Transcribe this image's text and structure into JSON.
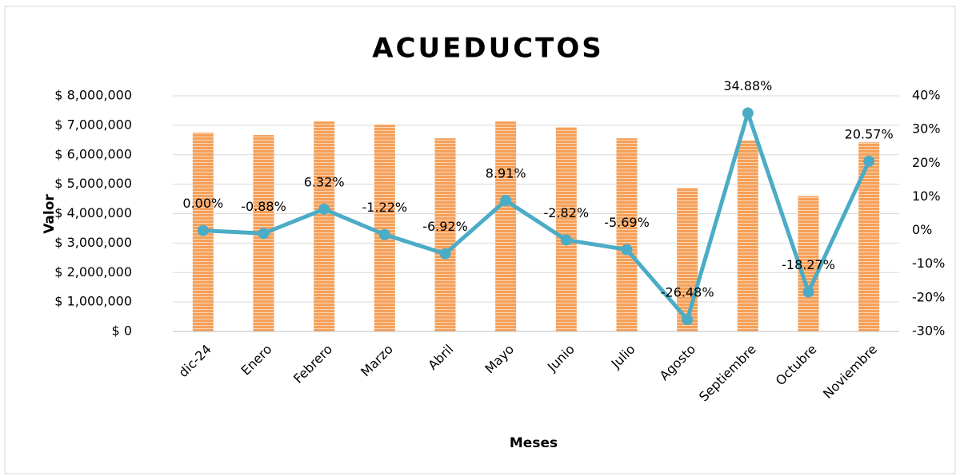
{
  "chart_data": {
    "type": "bar-line",
    "title": "ACUEDUCTOS",
    "x_label": "Meses",
    "y_label": "Valor",
    "categories": [
      "dic-24",
      "Enero",
      "Febrero",
      "Marzo",
      "Abril",
      "Mayo",
      "Junio",
      "Julio",
      "Agosto",
      "Septiembre",
      "Octubre",
      "Noviembre"
    ],
    "series": [
      {
        "type": "bar",
        "color": "#f5a05a",
        "values": [
          6750000,
          6670000,
          7130000,
          7020000,
          6560000,
          7130000,
          6940000,
          6560000,
          4880000,
          6480000,
          4600000,
          6420000
        ]
      },
      {
        "type": "line",
        "axis": "y2",
        "color": "#4bacc6",
        "values": [
          0,
          -0.88,
          6.32,
          -1.22,
          -6.92,
          8.91,
          -2.82,
          -5.69,
          -26.48,
          34.88,
          -18.27,
          20.57
        ],
        "value_labels": [
          "0.00%",
          "-0.88%",
          "6.32%",
          "-1.22%",
          "-6.92%",
          "8.91%",
          "-2.82%",
          "-5.69%",
          "-26.48%",
          "34.88%",
          "-18.27%",
          "20.57%"
        ]
      }
    ],
    "ylim": [
      0,
      8000000
    ],
    "yticks": [
      {
        "value": 0,
        "label": "$ 0"
      },
      {
        "value": 1000000,
        "label": "$ 1,000,000"
      },
      {
        "value": 2000000,
        "label": "$ 2,000,000"
      },
      {
        "value": 3000000,
        "label": "$ 3,000,000"
      },
      {
        "value": 4000000,
        "label": "$ 4,000,000"
      },
      {
        "value": 5000000,
        "label": "$ 5,000,000"
      },
      {
        "value": 6000000,
        "label": "$ 6,000,000"
      },
      {
        "value": 7000000,
        "label": "$ 7,000,000"
      },
      {
        "value": 8000000,
        "label": "$ 8,000,000"
      }
    ],
    "y2lim": [
      -30,
      40
    ],
    "y2ticks": [
      {
        "value": -30,
        "label": "-30%"
      },
      {
        "value": -20,
        "label": "-20%"
      },
      {
        "value": -10,
        "label": "-10%"
      },
      {
        "value": 0,
        "label": "0%"
      },
      {
        "value": 10,
        "label": "10%"
      },
      {
        "value": 20,
        "label": "20%"
      },
      {
        "value": 30,
        "label": "30%"
      },
      {
        "value": 40,
        "label": "40%"
      }
    ],
    "grid": true
  }
}
